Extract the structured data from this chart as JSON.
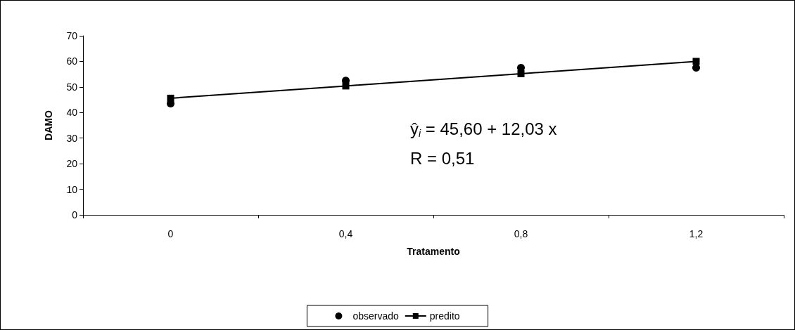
{
  "chart_data": {
    "type": "line",
    "xlabel": "Tratamento",
    "ylabel": "DAMO",
    "categories": [
      "0",
      "0,4",
      "0,8",
      "1,2"
    ],
    "series": [
      {
        "name": "observado",
        "type": "scatter",
        "marker": "circle",
        "color": "#000000",
        "x": [
          "0",
          "0,4",
          "0,8",
          "1,2"
        ],
        "values": [
          43.5,
          52.5,
          57.5,
          57.5
        ]
      },
      {
        "name": "predito",
        "marker": "square",
        "color": "#000000",
        "values": [
          45.6,
          50.4,
          55.2,
          60.0
        ]
      }
    ],
    "ylim": [
      0,
      70
    ],
    "yticks": [
      0,
      10,
      20,
      30,
      40,
      50,
      60,
      70
    ],
    "legend": "bottom",
    "annotations": [
      "ŷ$_{i}$ = 45,60 + 12,03 x",
      "R = 0,51"
    ]
  }
}
